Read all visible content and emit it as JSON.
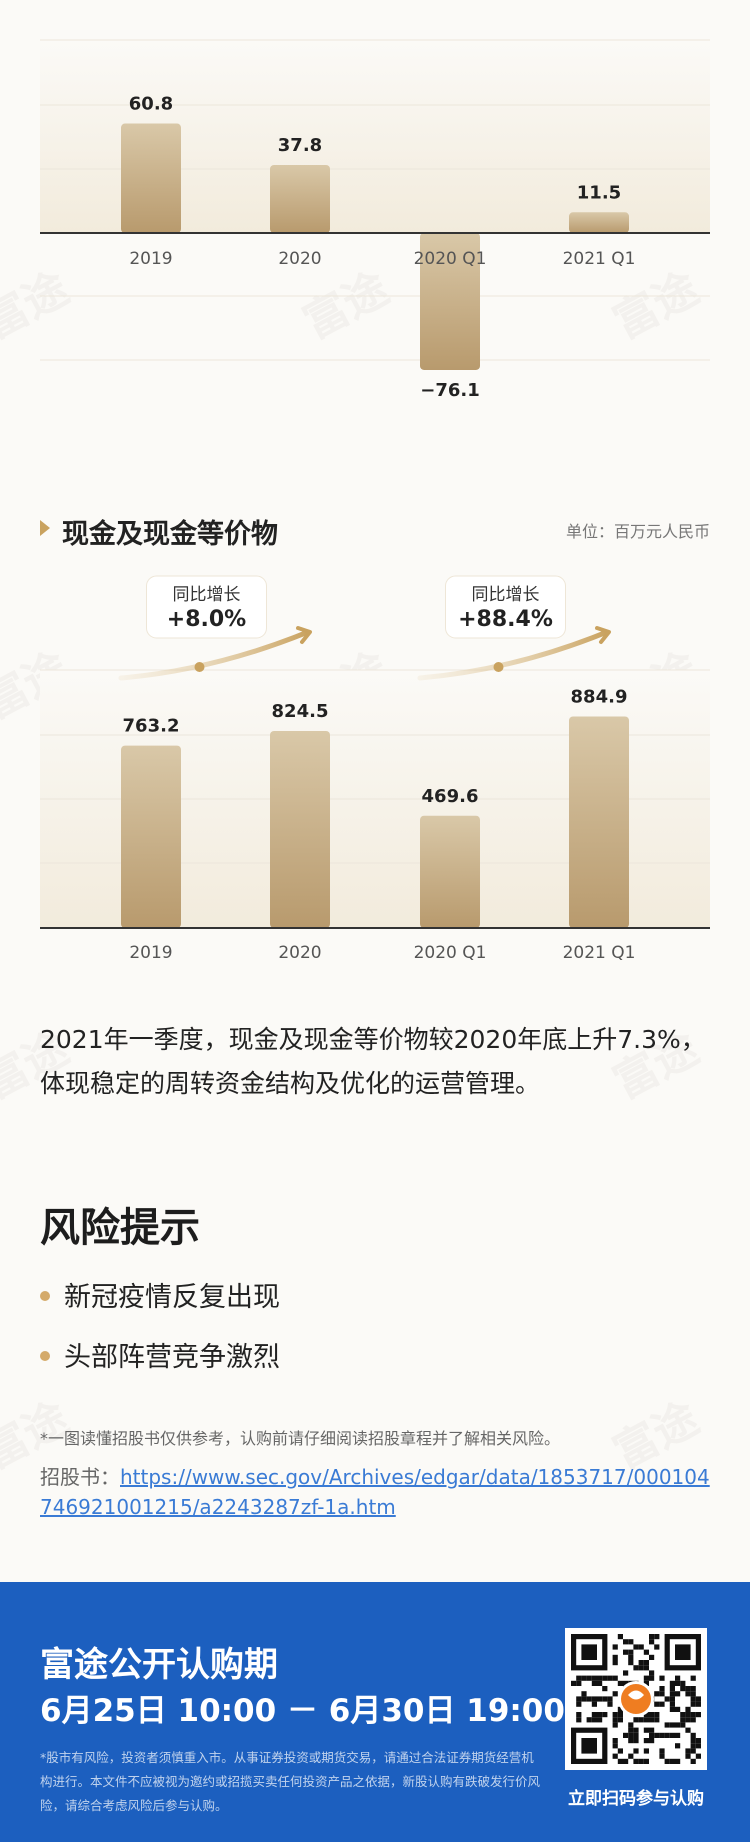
{
  "watermark": "富途",
  "chart_data": [
    {
      "type": "bar",
      "categories": [
        "2019",
        "2020",
        "2020 Q1",
        "2021 Q1"
      ],
      "values": [
        60.8,
        37.8,
        -76.1,
        11.5
      ],
      "value_labels": [
        "60.8",
        "37.8",
        "−76.1",
        "11.5"
      ],
      "title": "",
      "xlabel": "",
      "ylabel": "",
      "ylim": [
        -90,
        90
      ],
      "grid": true
    },
    {
      "type": "bar",
      "title": "现金及现金等价物",
      "unit": "单位：百万元人民币",
      "categories": [
        "2019",
        "2020",
        "2020 Q1",
        "2021 Q1"
      ],
      "values": [
        763.2,
        824.5,
        469.6,
        884.9
      ],
      "value_labels": [
        "763.2",
        "824.5",
        "469.6",
        "884.9"
      ],
      "xlabel": "",
      "ylabel": "",
      "ylim": [
        0,
        1000
      ],
      "grid": true,
      "annotations": [
        {
          "label": "同比增长",
          "value": "+8.0%",
          "between": [
            "2019",
            "2020"
          ]
        },
        {
          "label": "同比增长",
          "value": "+88.4%",
          "between": [
            "2020 Q1",
            "2021 Q1"
          ]
        }
      ]
    }
  ],
  "section": {
    "title": "现金及现金等价物",
    "unit": "单位：百万元人民币"
  },
  "paragraph": "2021年一季度，现金及现金等价物较2020年底上升7.3%，体现稳定的周转资金结构及优化的运营管理。",
  "risk": {
    "title": "风险提示",
    "items": [
      "新冠疫情反复出现",
      "头部阵营竞争激烈"
    ]
  },
  "disclaimer": "*一图读懂招股书仅供参考，认购前请仔细阅读招股章程并了解相关风险。",
  "prospectus": {
    "label": "招股书：",
    "url": "https://www.sec.gov/Archives/edgar/data/1853717/000104746921001215/a2243287zf-1a.htm"
  },
  "footer": {
    "title": "富途公开认购期",
    "date": "6月25日 10:00 － 6月30日 19:00",
    "note": "*股市有风险，投资者须慎重入市。从事证券投资或期货交易，请通过合法证券期货经营机构进行。本文件不应被视为邀约或招揽买卖任何投资产品之依据，新股认购有跌破发行价风险，请综合考虑风险后参与认购。",
    "scan": "立即扫码参与认购"
  },
  "colors": {
    "bar_top": "#d9c8a8",
    "bar_bottom": "#b89a6d",
    "accent": "#c9a25f",
    "footer_bg": "#1c5fbf",
    "link": "#3a7bd5"
  }
}
